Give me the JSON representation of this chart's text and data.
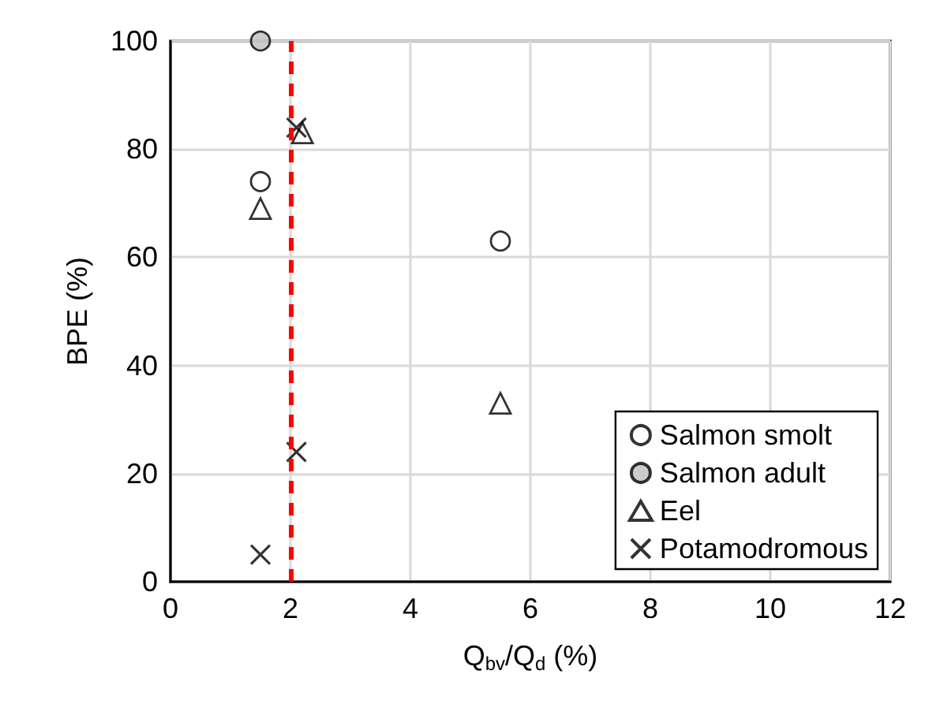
{
  "chart_data": {
    "type": "scatter",
    "xlabel": "Q$_{bv}$/Q$_{d}$ (%)",
    "ylabel": "BPE (%)",
    "xlim": [
      0,
      12
    ],
    "xticks": [
      0,
      2,
      4,
      6,
      8,
      10,
      12
    ],
    "ylim": [
      0,
      100
    ],
    "yticks": [
      0,
      20,
      40,
      60,
      80,
      100
    ],
    "grid": true,
    "legend": "bottom right",
    "series": [
      {
        "name": "Salmon smolt",
        "color": "#ffffff",
        "marker": "circle",
        "x": [
          1.5,
          5.5
        ],
        "values": [
          74,
          63
        ]
      },
      {
        "name": "Salmon adult",
        "color": "#bfbfbf",
        "marker": "circle",
        "x": [
          1.5
        ],
        "values": [
          100
        ]
      },
      {
        "name": "Eel",
        "color": "#ffffff",
        "marker": "triangle",
        "x": [
          1.5,
          2.2,
          5.5
        ],
        "values": [
          69,
          83,
          33
        ]
      },
      {
        "name": "Potamodromous",
        "color": "#000000",
        "marker": "cross",
        "x": [
          2.1,
          2.1,
          1.5
        ],
        "values": [
          84,
          24,
          5
        ]
      }
    ],
    "ref_lines": [
      {
        "axis": "x",
        "value": 2,
        "color": "#ff0000",
        "line_style": "dashed"
      }
    ]
  }
}
